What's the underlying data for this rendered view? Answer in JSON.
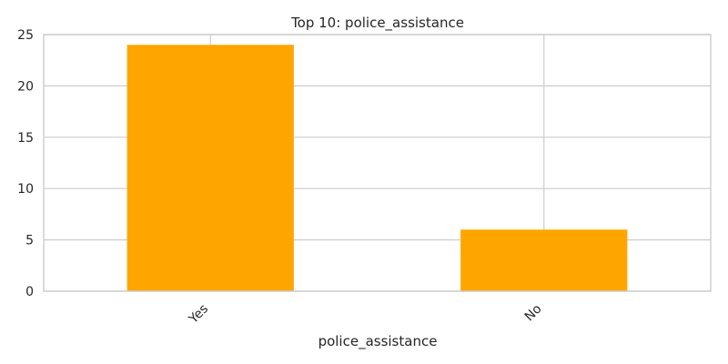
{
  "chart_data": {
    "type": "bar",
    "title": "Top 10: police_assistance",
    "xlabel": "police_assistance",
    "ylabel": "",
    "categories": [
      "Yes",
      "No"
    ],
    "values": [
      24,
      6
    ],
    "ylim": [
      0,
      25
    ],
    "yticks": [
      0,
      5,
      10,
      15,
      20,
      25
    ],
    "grid": true,
    "bar_color": "#ffa500",
    "grid_color": "#cccccc"
  }
}
